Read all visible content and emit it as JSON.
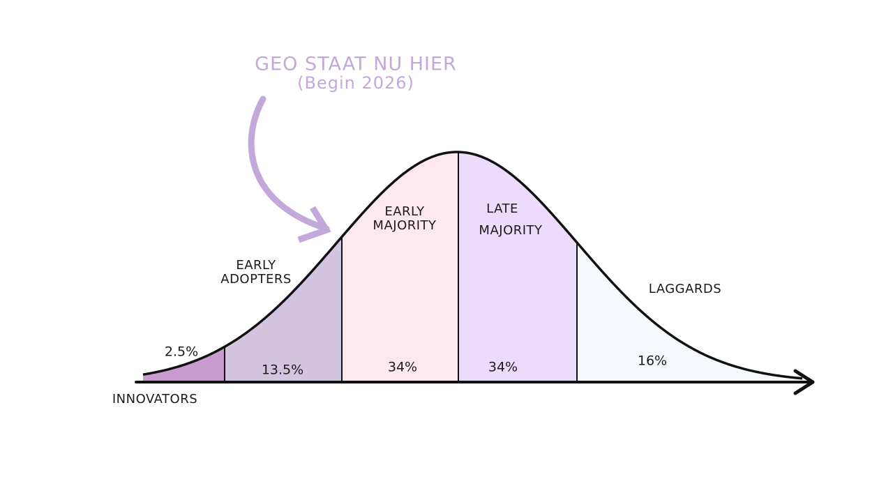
{
  "annotation": {
    "lines": [
      "GEO STAAT NU HIER",
      "(Begin 2026)"
    ]
  },
  "segments": [
    {
      "label_lines": [
        "INNOVATORS"
      ],
      "percent": "2.5%"
    },
    {
      "label_lines": [
        "EARLY",
        "ADOPTERS"
      ],
      "percent": "13.5%"
    },
    {
      "label_lines": [
        "EARLY",
        "MAJORITY"
      ],
      "percent": "34%"
    },
    {
      "label_lines": [
        "LATE",
        "MAJORITY"
      ],
      "percent": "34%"
    },
    {
      "label_lines": [
        "LAGGARDS"
      ],
      "percent": "16%"
    }
  ]
}
